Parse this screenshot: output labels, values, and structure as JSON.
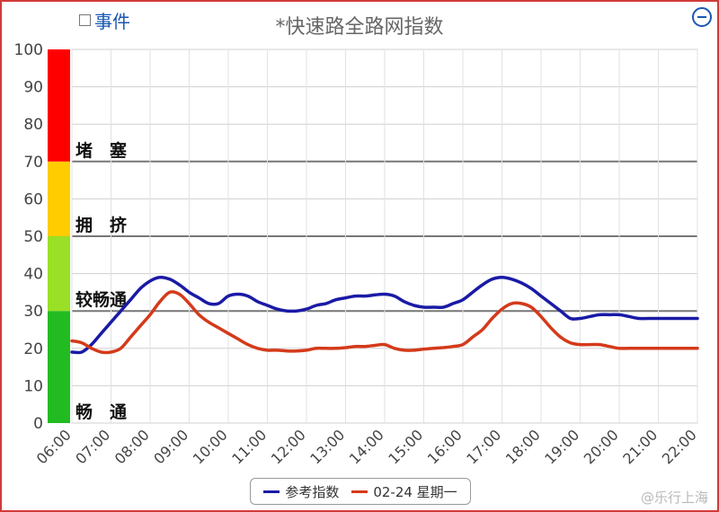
{
  "header": {
    "event_label": "事件",
    "title": "*快速路全路网指数"
  },
  "watermark": "@乐行上海",
  "chart_data": {
    "type": "line",
    "title": "*快速路全路网指数",
    "xlabel": "",
    "ylabel": "",
    "categories": [
      "06:00",
      "07:00",
      "08:00",
      "09:00",
      "10:00",
      "11:00",
      "12:00",
      "13:00",
      "14:00",
      "15:00",
      "16:00",
      "17:00",
      "18:00",
      "19:00",
      "20:00",
      "21:00",
      "22:00"
    ],
    "ylim": [
      0,
      100
    ],
    "yticks": [
      0,
      10,
      20,
      30,
      40,
      50,
      60,
      70,
      80,
      90,
      100
    ],
    "grid": true,
    "legend_position": "bottom",
    "bands": [
      {
        "label": "畅　通",
        "from": 0,
        "to": 30,
        "color": "#22bb22"
      },
      {
        "label": "较畅通",
        "from": 30,
        "to": 50,
        "color": "#99e026"
      },
      {
        "label": "拥　挤",
        "from": 50,
        "to": 70,
        "color": "#ffcc00"
      },
      {
        "label": "堵　塞",
        "from": 70,
        "to": 100,
        "color": "#ff0000"
      }
    ],
    "series": [
      {
        "name": "参考指数",
        "color": "#1a1aa6",
        "x": [
          0,
          0.25,
          0.5,
          0.75,
          1,
          1.25,
          1.5,
          1.75,
          2,
          2.25,
          2.5,
          2.75,
          3,
          3.25,
          3.5,
          3.75,
          4,
          4.25,
          4.5,
          4.75,
          5,
          5.25,
          5.5,
          5.75,
          6,
          6.25,
          6.5,
          6.75,
          7,
          7.25,
          7.5,
          7.75,
          8,
          8.25,
          8.5,
          8.75,
          9,
          9.25,
          9.5,
          9.75,
          10,
          10.25,
          10.5,
          10.75,
          11,
          11.25,
          11.5,
          11.75,
          12,
          12.25,
          12.5,
          12.75,
          13,
          13.25,
          13.5,
          13.75,
          14,
          14.25,
          14.5,
          14.75,
          15,
          15.25,
          15.5,
          15.75,
          16
        ],
        "values": [
          19,
          19,
          21,
          24,
          27,
          30,
          33,
          36,
          38,
          39,
          38.5,
          37,
          35,
          33.5,
          32,
          32,
          34,
          34.5,
          34,
          32.5,
          31.5,
          30.5,
          30,
          30,
          30.5,
          31.5,
          32,
          33,
          33.5,
          34,
          34,
          34.3,
          34.5,
          34,
          32.5,
          31.5,
          31,
          31,
          31,
          32,
          33,
          35,
          37,
          38.5,
          39,
          38.5,
          37.5,
          36,
          34,
          32,
          30,
          28,
          28,
          28.5,
          29,
          29,
          29,
          28.5,
          28,
          28,
          28,
          28,
          28,
          28,
          28
        ]
      },
      {
        "name": "02-24 星期一",
        "color": "#d43a1a",
        "x": [
          0,
          0.25,
          0.5,
          0.75,
          1,
          1.25,
          1.5,
          1.75,
          2,
          2.25,
          2.5,
          2.75,
          3,
          3.25,
          3.5,
          3.75,
          4,
          4.25,
          4.5,
          4.75,
          5,
          5.25,
          5.5,
          5.75,
          6,
          6.25,
          6.5,
          6.75,
          7,
          7.25,
          7.5,
          7.75,
          8,
          8.25,
          8.5,
          8.75,
          9,
          9.25,
          9.5,
          9.75,
          10,
          10.25,
          10.5,
          10.75,
          11,
          11.25,
          11.5,
          11.75,
          12,
          12.25,
          12.5,
          12.75,
          13,
          13.25,
          13.5,
          13.75,
          14,
          14.25,
          14.5,
          14.75,
          15,
          15.25,
          15.5,
          15.75,
          16
        ],
        "values": [
          22,
          21.5,
          20,
          19,
          19,
          20,
          23,
          26,
          29,
          32.5,
          35,
          34.5,
          32,
          29,
          27,
          25.5,
          24,
          22.5,
          21,
          20,
          19.5,
          19.5,
          19.3,
          19.3,
          19.5,
          20,
          20,
          20,
          20.2,
          20.5,
          20.5,
          20.8,
          21,
          20,
          19.5,
          19.5,
          19.8,
          20,
          20.2,
          20.5,
          21,
          23,
          25,
          28,
          30.5,
          32,
          32,
          31,
          28.5,
          25.5,
          23,
          21.5,
          21,
          21,
          21,
          20.5,
          20,
          20,
          20,
          20,
          20,
          20,
          20,
          20,
          20
        ]
      }
    ]
  }
}
